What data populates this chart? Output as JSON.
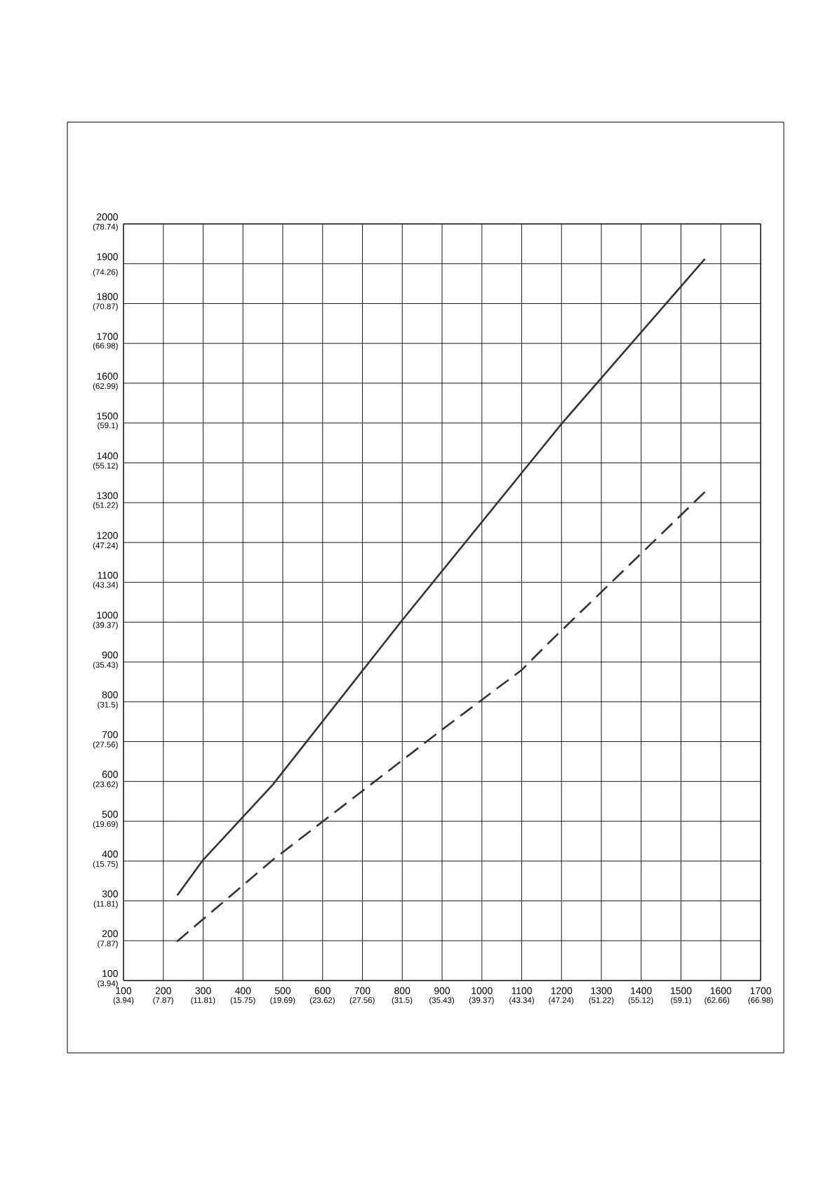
{
  "chart_data": {
    "type": "line",
    "grid": true,
    "marker": "none",
    "xlim": [
      100,
      1700
    ],
    "ylim": [
      100,
      2000
    ],
    "xticks": [
      100,
      200,
      300,
      400,
      500,
      600,
      700,
      800,
      900,
      1000,
      1100,
      1200,
      1300,
      1400,
      1500,
      1600,
      1700
    ],
    "yticks": [
      100,
      200,
      300,
      400,
      500,
      600,
      700,
      800,
      900,
      1000,
      1100,
      1200,
      1300,
      1400,
      1500,
      1600,
      1700,
      1800,
      1900,
      2000
    ],
    "x2lim": [
      3.94,
      66.98
    ],
    "x2ticks": [
      {
        "value": 3.94,
        "label": "(3.94)"
      },
      {
        "value": 7.87,
        "label": "(7.87)"
      },
      {
        "value": 11.81,
        "label": "(11.81)"
      },
      {
        "value": 15.75,
        "label": "(15.75)"
      },
      {
        "value": 19.69,
        "label": "(19.69)"
      },
      {
        "value": 23.62,
        "label": "(23.62)"
      },
      {
        "value": 27.56,
        "label": "(27.56)"
      },
      {
        "value": 31.5,
        "label": "(31.5)"
      },
      {
        "value": 35.43,
        "label": "(35.43)"
      },
      {
        "value": 39.37,
        "label": "(39.37)"
      },
      {
        "value": 43.34,
        "label": "(43.34)"
      },
      {
        "value": 47.24,
        "label": "(47.24)"
      },
      {
        "value": 51.22,
        "label": "(51.22)"
      },
      {
        "value": 55.12,
        "label": "(55.12)"
      },
      {
        "value": 59.1,
        "label": "(59.1)"
      },
      {
        "value": 62.66,
        "label": "(62.66)"
      },
      {
        "value": 66.98,
        "label": "(66.98)"
      }
    ],
    "y2lim": [
      3.94,
      78.74
    ],
    "y2ticks": [
      {
        "value": 3.94,
        "label": "(3.94)"
      },
      {
        "value": 7.87,
        "label": "(7.87)"
      },
      {
        "value": 11.81,
        "label": "(11.81)"
      },
      {
        "value": 15.75,
        "label": "(15.75)"
      },
      {
        "value": 19.69,
        "label": "(19.69)"
      },
      {
        "value": 23.62,
        "label": "(23.62)"
      },
      {
        "value": 27.56,
        "label": "(27.56)"
      },
      {
        "value": 31.5,
        "label": "(31.5)"
      },
      {
        "value": 35.43,
        "label": "(35.43)"
      },
      {
        "value": 39.37,
        "label": "(39.37)"
      },
      {
        "value": 43.34,
        "label": "(43.34)"
      },
      {
        "value": 47.24,
        "label": "(47.24)"
      },
      {
        "value": 51.22,
        "label": "(51.22)"
      },
      {
        "value": 55.12,
        "label": "(55.12)"
      },
      {
        "value": 59.1,
        "label": "(59.1)"
      },
      {
        "value": 62.99,
        "label": "(62.99)"
      },
      {
        "value": 66.98,
        "label": "(66.98)"
      },
      {
        "value": 70.87,
        "label": "(70.87)"
      },
      {
        "value": 74.26,
        "label": "(74.26)"
      },
      {
        "value": 78.74,
        "label": "(78.74)"
      }
    ],
    "series": [
      {
        "color": "#333333",
        "line_style": "solid",
        "x": [
          235,
          300,
          475,
          800,
          1200,
          1560
        ],
        "values": [
          314,
          403,
          592,
          1005,
          1498,
          1912
        ]
      },
      {
        "color": "#333333",
        "line_style": "dashed",
        "x": [
          234,
          475,
          900,
          1100,
          1170,
          1560
        ],
        "values": [
          198,
          403,
          730,
          880,
          950,
          1327
        ]
      }
    ]
  }
}
